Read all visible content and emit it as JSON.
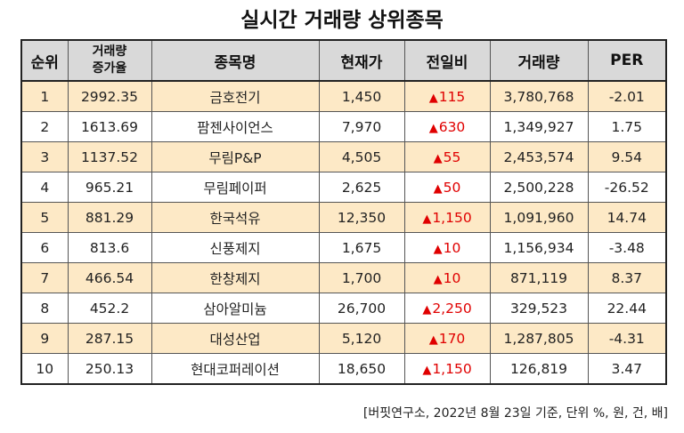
{
  "title": "실시간 거래량 상위종목",
  "headers": {
    "rank": "순위",
    "increase_line1": "거래량",
    "increase_line2": "증가율",
    "name": "종목명",
    "price": "현재가",
    "change": "전일비",
    "volume": "거래량",
    "per": "PER"
  },
  "rows": [
    {
      "rank": "1",
      "increase": "2992.35",
      "name": "금호전기",
      "price": "1,450",
      "change": "115",
      "volume": "3,780,768",
      "per": "-2.01"
    },
    {
      "rank": "2",
      "increase": "1613.69",
      "name": "팜젠사이언스",
      "price": "7,970",
      "change": "630",
      "volume": "1,349,927",
      "per": "1.75"
    },
    {
      "rank": "3",
      "increase": "1137.52",
      "name": "무림P&P",
      "price": "4,505",
      "change": "55",
      "volume": "2,453,574",
      "per": "9.54"
    },
    {
      "rank": "4",
      "increase": "965.21",
      "name": "무림페이퍼",
      "price": "2,625",
      "change": "50",
      "volume": "2,500,228",
      "per": "-26.52"
    },
    {
      "rank": "5",
      "increase": "881.29",
      "name": "한국석유",
      "price": "12,350",
      "change": "1,150",
      "volume": "1,091,960",
      "per": "14.74"
    },
    {
      "rank": "6",
      "increase": "813.6",
      "name": "신풍제지",
      "price": "1,675",
      "change": "10",
      "volume": "1,156,934",
      "per": "-3.48"
    },
    {
      "rank": "7",
      "increase": "466.54",
      "name": "한창제지",
      "price": "1,700",
      "change": "10",
      "volume": "871,119",
      "per": "8.37"
    },
    {
      "rank": "8",
      "increase": "452.2",
      "name": "삼아알미늄",
      "price": "26,700",
      "change": "2,250",
      "volume": "329,523",
      "per": "22.44"
    },
    {
      "rank": "9",
      "increase": "287.15",
      "name": "대성산업",
      "price": "5,120",
      "change": "170",
      "volume": "1,287,805",
      "per": "-4.31"
    },
    {
      "rank": "10",
      "increase": "250.13",
      "name": "현대코퍼레이션",
      "price": "18,650",
      "change": "1,150",
      "volume": "126,819",
      "per": "3.47"
    }
  ],
  "up_symbol": "▲",
  "footnote": "[버핏연구소, 2022년 8월 23일 기준, 단위 %, 원, 건, 배]",
  "colors": {
    "header_bg": "#d9d9d9",
    "highlight_row_bg": "#fde9c6",
    "up_red": "#e00000"
  }
}
